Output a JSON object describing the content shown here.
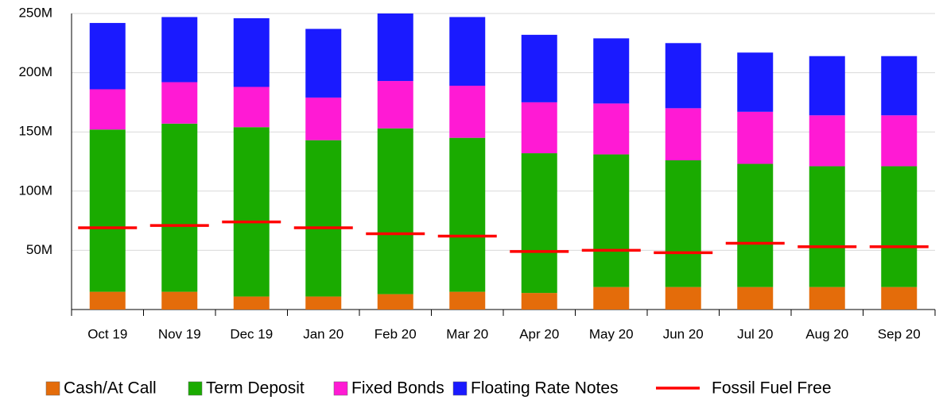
{
  "chart_data": {
    "type": "stacked_bar",
    "categories": [
      "Oct 19",
      "Nov 19",
      "Dec 19",
      "Jan 20",
      "Feb 20",
      "Mar 20",
      "Apr 20",
      "May 20",
      "Jun 20",
      "Jul 20",
      "Aug 20",
      "Sep 20"
    ],
    "series": [
      {
        "name": "Cash/At Call",
        "color": "#e46c0a",
        "values": [
          15000000,
          15000000,
          11000000,
          11000000,
          13000000,
          15000000,
          14000000,
          19000000,
          19000000,
          19000000,
          19000000,
          19000000
        ]
      },
      {
        "name": "Term Deposit",
        "color": "#1aab00",
        "values": [
          137000000,
          142000000,
          143000000,
          132000000,
          140000000,
          130000000,
          118000000,
          112000000,
          107000000,
          104000000,
          102000000,
          102000000
        ]
      },
      {
        "name": "Fixed Bonds",
        "color": "#ff1ad4",
        "values": [
          34000000,
          35000000,
          34000000,
          36000000,
          40000000,
          44000000,
          43000000,
          43000000,
          44000000,
          44000000,
          43000000,
          43000000
        ]
      },
      {
        "name": "Floating Rate Notes",
        "color": "#1a1aff",
        "values": [
          56000000,
          55000000,
          58000000,
          58000000,
          57000000,
          58000000,
          57000000,
          55000000,
          55000000,
          50000000,
          50000000,
          50000000
        ]
      }
    ],
    "line_series": {
      "name": "Fossil Fuel Free",
      "color": "#ff0000",
      "values": [
        69000000,
        71000000,
        74000000,
        69000000,
        64000000,
        62000000,
        49000000,
        50000000,
        48000000,
        56000000,
        53000000,
        53000000
      ]
    },
    "ylim": [
      0,
      250000000
    ],
    "yticks": [
      {
        "value": 50000000,
        "label": "50M"
      },
      {
        "value": 100000000,
        "label": "100M"
      },
      {
        "value": 150000000,
        "label": "150M"
      },
      {
        "value": 200000000,
        "label": "200M"
      },
      {
        "value": 250000000,
        "label": "250M"
      }
    ],
    "grid": true
  }
}
